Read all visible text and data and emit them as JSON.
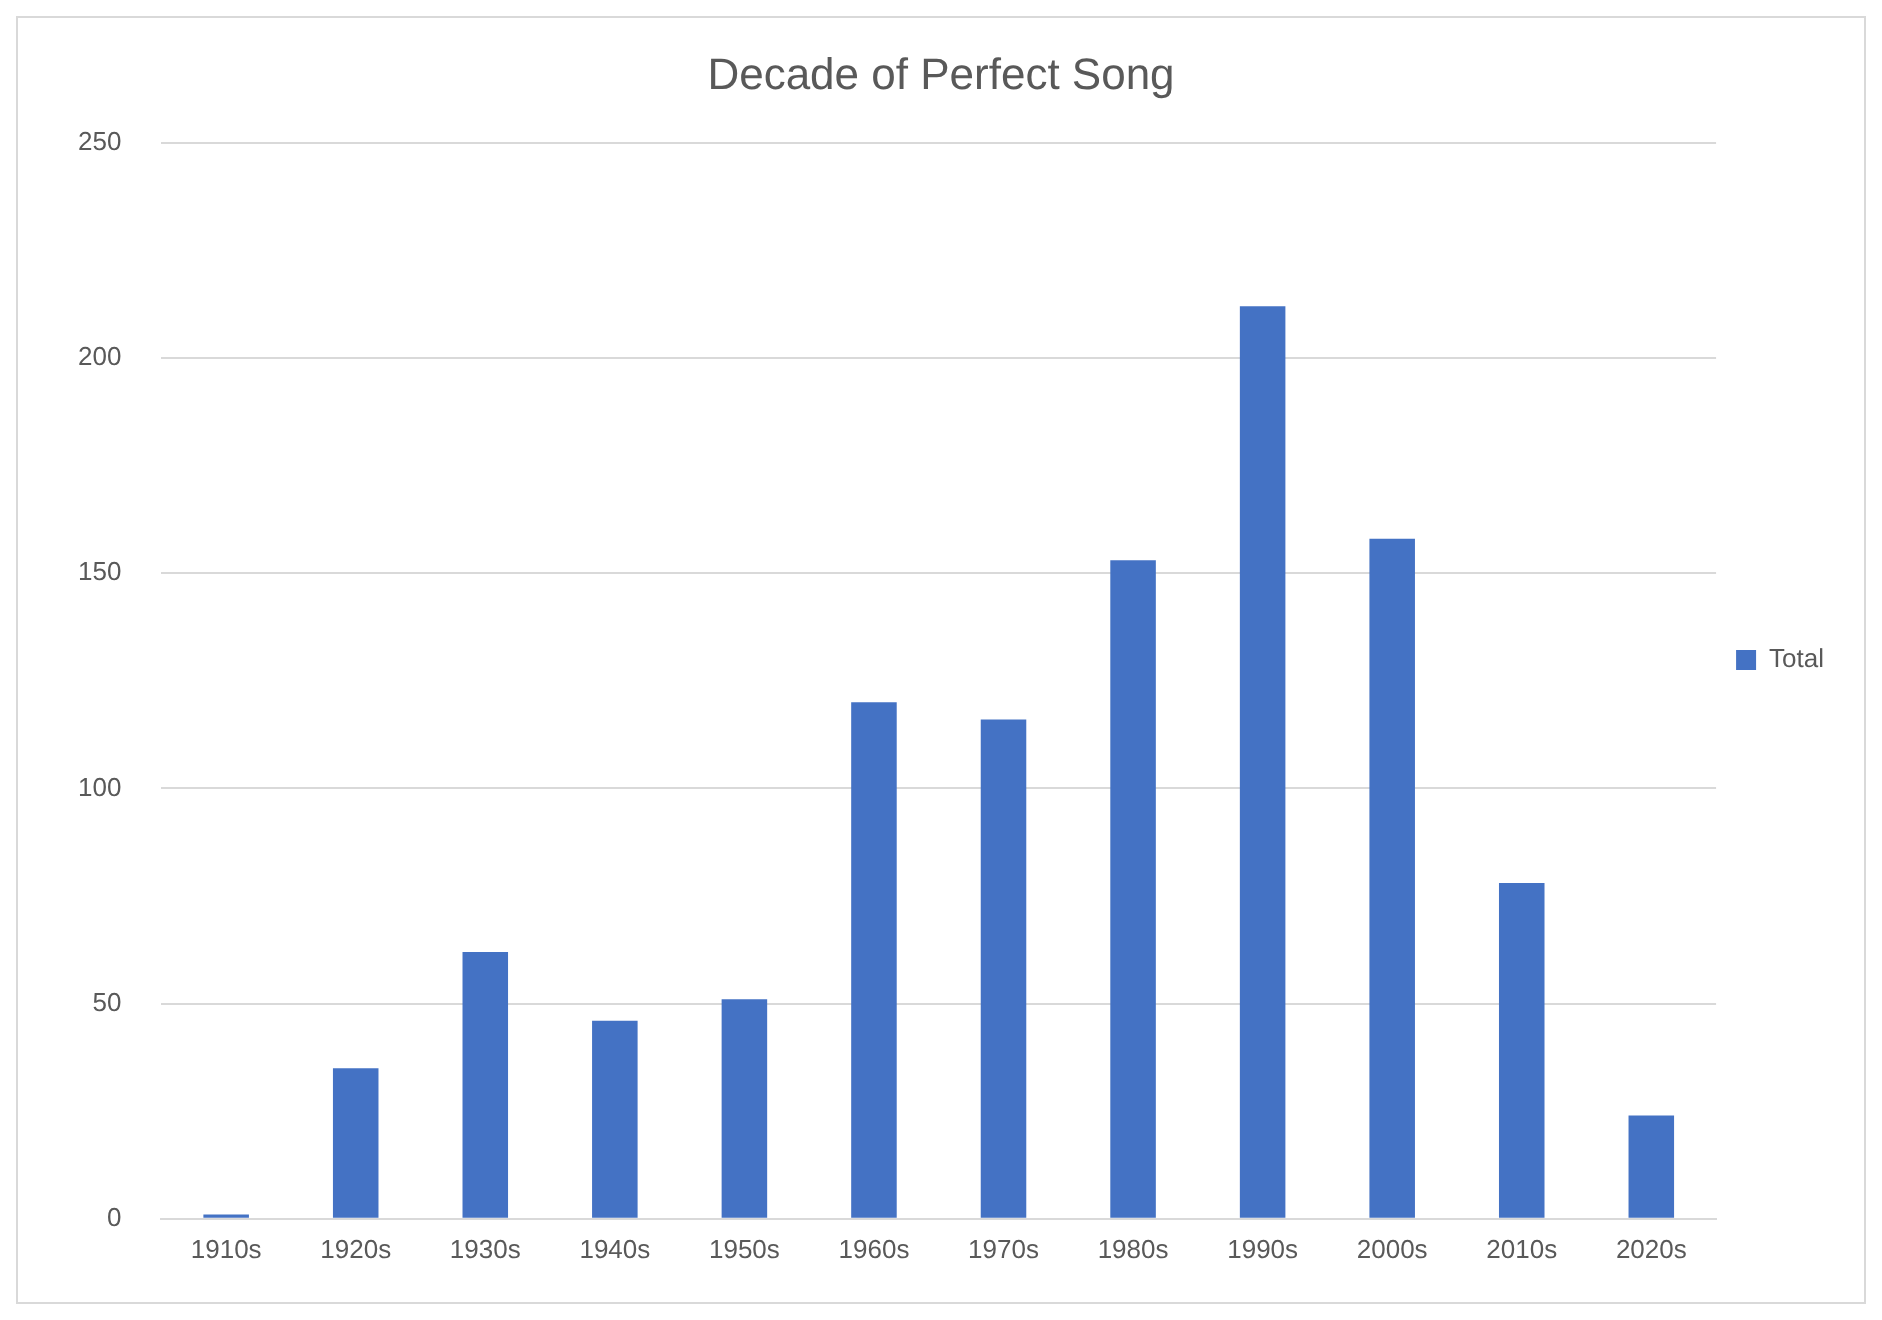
{
  "chart_data": {
    "type": "bar",
    "title": "Decade of Perfect Song",
    "categories": [
      "1910s",
      "1920s",
      "1930s",
      "1940s",
      "1950s",
      "1960s",
      "1970s",
      "1980s",
      "1990s",
      "2000s",
      "2010s",
      "2020s"
    ],
    "series": [
      {
        "name": "Total",
        "color": "#4472c4",
        "values": [
          1,
          35,
          62,
          46,
          51,
          120,
          116,
          153,
          212,
          158,
          78,
          24
        ]
      }
    ],
    "ylim": [
      0,
      250
    ],
    "yticks": [
      0,
      50,
      100,
      150,
      200,
      250
    ],
    "grid": "y",
    "legend": "right"
  }
}
